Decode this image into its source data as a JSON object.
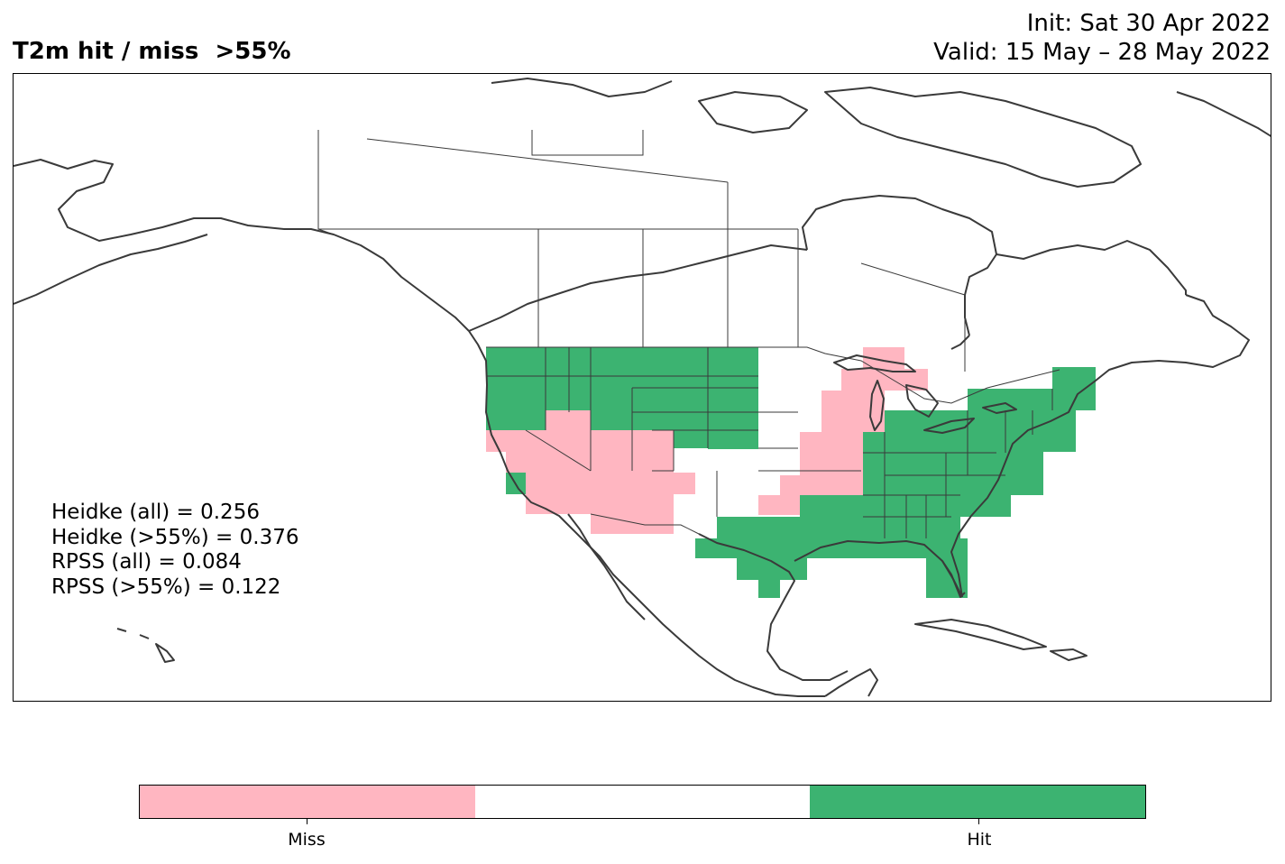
{
  "title": {
    "left": "T2m hit / miss  >55%",
    "init": "Init: Sat 30 Apr 2022",
    "valid": "Valid: 15 May – 28 May 2022"
  },
  "stats": {
    "heidke_all": "Heidke (all) = 0.256",
    "heidke_55": "Heidke (>55%) = 0.376",
    "rpss_all": "RPSS (all) = 0.084",
    "rpss_55": "RPSS (>55%) = 0.122"
  },
  "legend": {
    "categories": [
      {
        "label": "Miss",
        "color": "#ffb6c1"
      },
      {
        "label": "",
        "color": "#ffffff"
      },
      {
        "label": "Hit",
        "color": "#3cb371"
      }
    ],
    "tick_labels": [
      "Miss",
      "Hit"
    ]
  },
  "colors": {
    "miss": "#ffb6c1",
    "hit": "#3cb371",
    "coast": "#3a3a3a"
  }
}
